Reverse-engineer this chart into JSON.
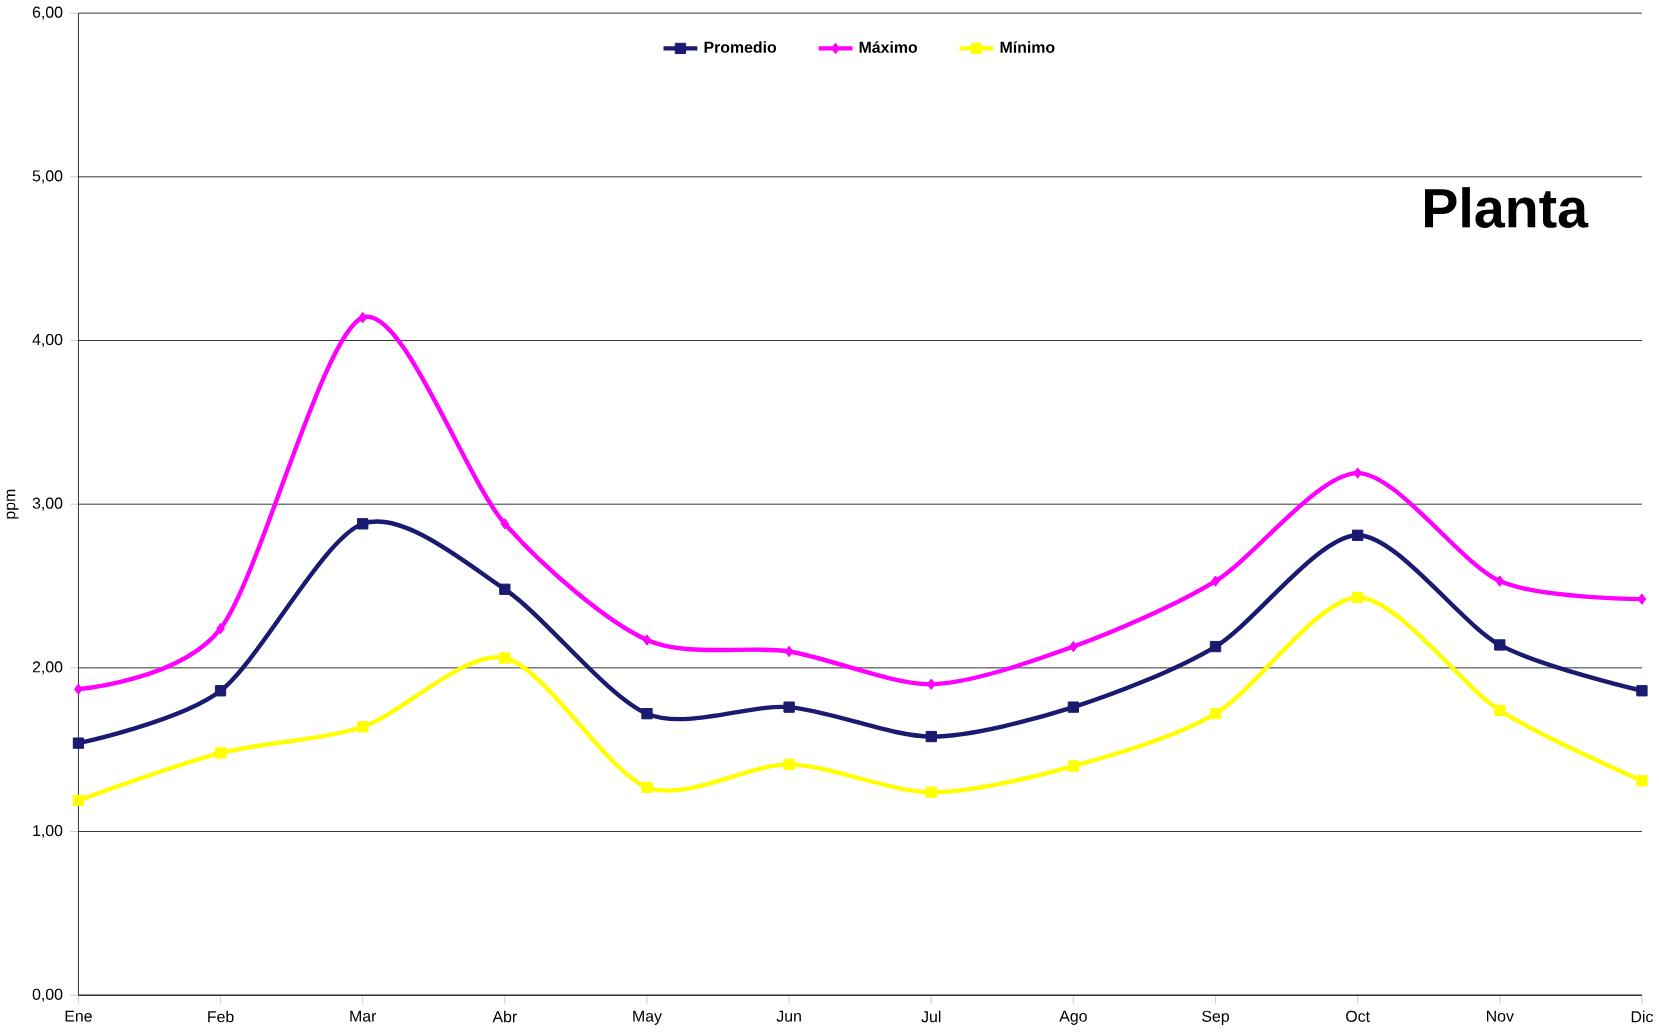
{
  "chart_data": {
    "type": "line",
    "ylabel": "ppm",
    "annotations": [
      "Planta"
    ],
    "categories": [
      "Ene",
      "Feb",
      "Mar",
      "Abr",
      "May",
      "Jun",
      "Jul",
      "Ago",
      "Sep",
      "Oct",
      "Nov",
      "Dic"
    ],
    "series": [
      {
        "name": "Promedio",
        "color": "#1a1a70",
        "marker": "square",
        "values": [
          1.54,
          1.86,
          2.88,
          2.48,
          1.72,
          1.76,
          1.58,
          1.76,
          2.13,
          2.81,
          2.14,
          1.86
        ]
      },
      {
        "name": "Máximo",
        "color": "#ff00ff",
        "marker": "diamond",
        "values": [
          1.87,
          2.24,
          4.14,
          2.88,
          2.17,
          2.1,
          1.9,
          2.13,
          2.53,
          3.19,
          2.53,
          2.42
        ]
      },
      {
        "name": "Mínimo",
        "color": "#ffff00",
        "marker": "square",
        "values": [
          1.19,
          1.48,
          1.64,
          2.06,
          1.27,
          1.41,
          1.24,
          1.4,
          1.72,
          2.43,
          1.74,
          1.31
        ]
      }
    ],
    "ylim": [
      0,
      6
    ],
    "yticks": [
      {
        "value": 0,
        "label": "0,00"
      },
      {
        "value": 1,
        "label": "1,00"
      },
      {
        "value": 2,
        "label": "2,00"
      },
      {
        "value": 3,
        "label": "3,00"
      },
      {
        "value": 4,
        "label": "4,00"
      },
      {
        "value": 5,
        "label": "5,00"
      },
      {
        "value": 6,
        "label": "6,00"
      }
    ],
    "grid": "y",
    "legend": "top",
    "line_style": "solid"
  }
}
